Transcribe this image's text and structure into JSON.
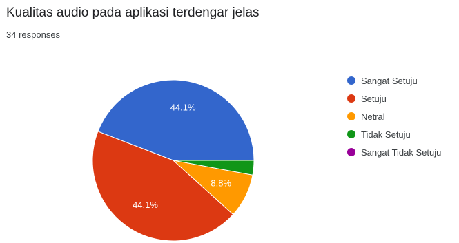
{
  "header": {
    "title": "Kualitas audio pada aplikasi terdengar jelas",
    "responses": "34 responses"
  },
  "chart_data": {
    "type": "pie",
    "title": "Kualitas audio pada aplikasi terdengar jelas",
    "total_responses": 34,
    "legend_position": "right",
    "slices": [
      {
        "label": "Sangat Setuju",
        "value": 44.1,
        "color": "#3366cc",
        "data_label": "44.1%"
      },
      {
        "label": "Setuju",
        "value": 44.1,
        "color": "#dc3912",
        "data_label": "44.1%"
      },
      {
        "label": "Netral",
        "value": 8.8,
        "color": "#ff9900",
        "data_label": "8.8%"
      },
      {
        "label": "Tidak Setuju",
        "value": 2.9,
        "color": "#109618",
        "data_label": ""
      },
      {
        "label": "Sangat Tidak Setuju",
        "value": 0,
        "color": "#990099",
        "data_label": ""
      }
    ]
  }
}
